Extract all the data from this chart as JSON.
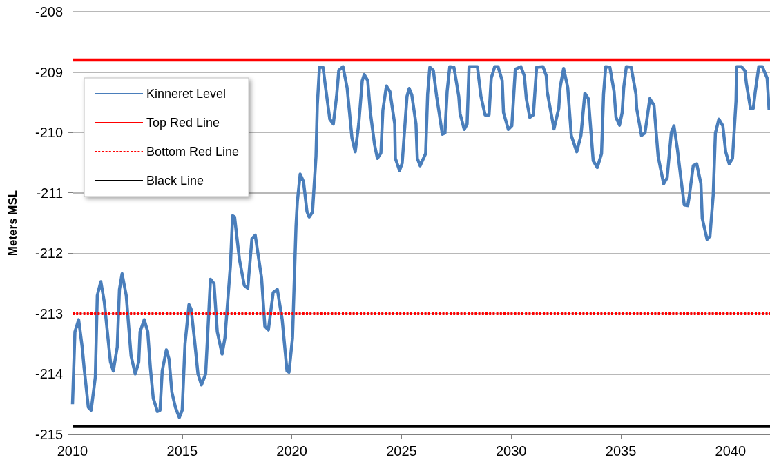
{
  "chart_data": {
    "type": "line",
    "ylabel": "Meters MSL",
    "xlim": [
      2010,
      2041.8
    ],
    "xticks": [
      2010,
      2015,
      2020,
      2025,
      2030,
      2035,
      2040
    ],
    "ylim": [
      -215,
      -208
    ],
    "yticks": [
      -215,
      -214,
      -213,
      -212,
      -211,
      -210,
      -209,
      -208
    ],
    "grid": "y",
    "legend": "top left",
    "marker": "none",
    "series": [
      {
        "name": "Kinneret Level",
        "color": "#4a7ebb",
        "line_style": "solid",
        "x": [
          2010,
          2010.11,
          2010.28,
          2010.44,
          2010.53,
          2010.72,
          2010.85,
          2011.04,
          2011.13,
          2011.29,
          2011.45,
          2011.73,
          2011.86,
          2012.04,
          2012.14,
          2012.26,
          2012.45,
          2012.67,
          2012.86,
          2013.02,
          2013.08,
          2013.27,
          2013.43,
          2013.55,
          2013.68,
          2013.87,
          2013.99,
          2014.09,
          2014.28,
          2014.4,
          2014.53,
          2014.69,
          2014.87,
          2015.0,
          2015.13,
          2015.31,
          2015.41,
          2015.57,
          2015.72,
          2015.88,
          2016.07,
          2016.19,
          2016.29,
          2016.45,
          2016.6,
          2016.82,
          2016.95,
          2017.2,
          2017.3,
          2017.39,
          2017.61,
          2017.83,
          2017.99,
          2018.18,
          2018.33,
          2018.62,
          2018.77,
          2018.93,
          2019.15,
          2019.34,
          2019.56,
          2019.78,
          2019.87,
          2020.03,
          2020.19,
          2020.25,
          2020.38,
          2020.53,
          2020.69,
          2020.79,
          2020.94,
          2021.1,
          2021.16,
          2021.26,
          2021.42,
          2021.54,
          2021.73,
          2021.89,
          2022.04,
          2022.14,
          2022.33,
          2022.52,
          2022.74,
          2022.89,
          2023.05,
          2023.21,
          2023.3,
          2023.46,
          2023.58,
          2023.77,
          2023.9,
          2024.06,
          2024.15,
          2024.31,
          2024.47,
          2024.69,
          2024.72,
          2024.91,
          2025.03,
          2025.25,
          2025.35,
          2025.47,
          2025.66,
          2025.72,
          2025.85,
          2026.1,
          2026.19,
          2026.29,
          2026.45,
          2026.6,
          2026.73,
          2026.86,
          2026.98,
          2027.08,
          2027.2,
          2027.39,
          2027.61,
          2027.67,
          2027.86,
          2027.99,
          2028.08,
          2028.46,
          2028.62,
          2028.81,
          2028.99,
          2029.09,
          2029.25,
          2029.4,
          2029.59,
          2029.65,
          2029.87,
          2030.03,
          2030.19,
          2030.44,
          2030.6,
          2030.69,
          2030.85,
          2031.01,
          2031.16,
          2031.45,
          2031.6,
          2031.64,
          2031.95,
          2032.17,
          2032.23,
          2032.39,
          2032.58,
          2032.74,
          2032.99,
          2033.18,
          2033.36,
          2033.52,
          2033.74,
          2033.93,
          2034.12,
          2034.21,
          2034.31,
          2034.5,
          2034.69,
          2034.78,
          2034.94,
          2035.06,
          2035.13,
          2035.25,
          2035.47,
          2035.69,
          2035.72,
          2035.94,
          2036.1,
          2036.32,
          2036.51,
          2036.7,
          2036.95,
          2037.11,
          2037.3,
          2037.42,
          2037.58,
          2037.74,
          2037.89,
          2038.05,
          2038.11,
          2038.3,
          2038.46,
          2038.65,
          2038.71,
          2038.93,
          2039.06,
          2039.21,
          2039.31,
          2039.47,
          2039.65,
          2039.78,
          2039.94,
          2040.09,
          2040.25,
          2040.28,
          2040.5,
          2040.66,
          2040.72,
          2040.91,
          2041.04,
          2041.13,
          2041.29,
          2041.45,
          2041.67,
          2041.76
        ],
        "values": [
          -214.5,
          -213.3,
          -213.1,
          -213.55,
          -213.9,
          -214.55,
          -214.6,
          -214.05,
          -212.7,
          -212.47,
          -212.81,
          -213.8,
          -213.95,
          -213.55,
          -212.6,
          -212.34,
          -212.7,
          -213.7,
          -214.0,
          -213.8,
          -213.3,
          -213.1,
          -213.3,
          -213.9,
          -214.4,
          -214.62,
          -214.6,
          -213.95,
          -213.6,
          -213.75,
          -214.3,
          -214.55,
          -214.72,
          -214.6,
          -213.5,
          -212.85,
          -212.93,
          -213.46,
          -214.0,
          -214.18,
          -214.0,
          -213.15,
          -212.43,
          -212.5,
          -213.3,
          -213.67,
          -213.4,
          -212.2,
          -211.38,
          -211.4,
          -212.1,
          -212.53,
          -212.58,
          -211.76,
          -211.7,
          -212.41,
          -213.21,
          -213.27,
          -212.65,
          -212.6,
          -213.1,
          -213.95,
          -213.97,
          -213.4,
          -211.55,
          -211.15,
          -210.69,
          -210.81,
          -211.31,
          -211.4,
          -211.32,
          -210.4,
          -209.55,
          -208.92,
          -208.92,
          -209.26,
          -209.78,
          -209.86,
          -209.4,
          -208.97,
          -208.91,
          -209.26,
          -210.09,
          -210.32,
          -209.86,
          -209.14,
          -209.04,
          -209.14,
          -209.67,
          -210.2,
          -210.43,
          -210.34,
          -209.63,
          -209.23,
          -209.32,
          -209.86,
          -210.43,
          -210.63,
          -210.51,
          -209.4,
          -209.27,
          -209.38,
          -209.86,
          -210.43,
          -210.55,
          -210.35,
          -209.37,
          -208.92,
          -208.97,
          -209.4,
          -209.71,
          -210.03,
          -210.01,
          -209.32,
          -208.91,
          -208.92,
          -209.4,
          -209.69,
          -209.95,
          -209.86,
          -208.91,
          -208.91,
          -209.4,
          -209.71,
          -209.71,
          -209.1,
          -208.91,
          -208.91,
          -209.14,
          -209.67,
          -209.95,
          -209.89,
          -208.95,
          -208.91,
          -209.06,
          -209.44,
          -209.75,
          -209.71,
          -208.92,
          -208.91,
          -209.06,
          -209.32,
          -209.94,
          -209.6,
          -209.26,
          -208.94,
          -209.26,
          -210.05,
          -210.32,
          -210.05,
          -209.35,
          -209.44,
          -210.47,
          -210.58,
          -210.35,
          -209.37,
          -208.91,
          -208.92,
          -209.32,
          -209.75,
          -209.88,
          -209.67,
          -209.26,
          -208.91,
          -208.92,
          -209.37,
          -209.6,
          -210.05,
          -210.01,
          -209.44,
          -209.55,
          -210.4,
          -210.85,
          -210.75,
          -210.0,
          -209.89,
          -210.28,
          -210.77,
          -211.2,
          -211.21,
          -211.08,
          -210.55,
          -210.52,
          -210.85,
          -211.42,
          -211.77,
          -211.72,
          -211.04,
          -210.01,
          -209.78,
          -209.89,
          -210.32,
          -210.52,
          -210.43,
          -209.48,
          -208.91,
          -208.91,
          -208.98,
          -209.18,
          -209.6,
          -209.6,
          -209.32,
          -208.91,
          -208.91,
          -209.1,
          -209.63
        ]
      },
      {
        "name": "Top Red Line",
        "color": "#ff0000",
        "line_style": "solid",
        "x": [
          2010,
          2041.8
        ],
        "values": [
          -208.8,
          -208.8
        ]
      },
      {
        "name": "Bottom Red Line",
        "color": "#ff0000",
        "line_style": "dashed",
        "x": [
          2010,
          2041.8
        ],
        "values": [
          -213,
          -213
        ]
      },
      {
        "name": "Black Line",
        "color": "#000000",
        "line_style": "solid",
        "x": [
          2010,
          2041.8
        ],
        "values": [
          -214.87,
          -214.87
        ]
      }
    ]
  }
}
